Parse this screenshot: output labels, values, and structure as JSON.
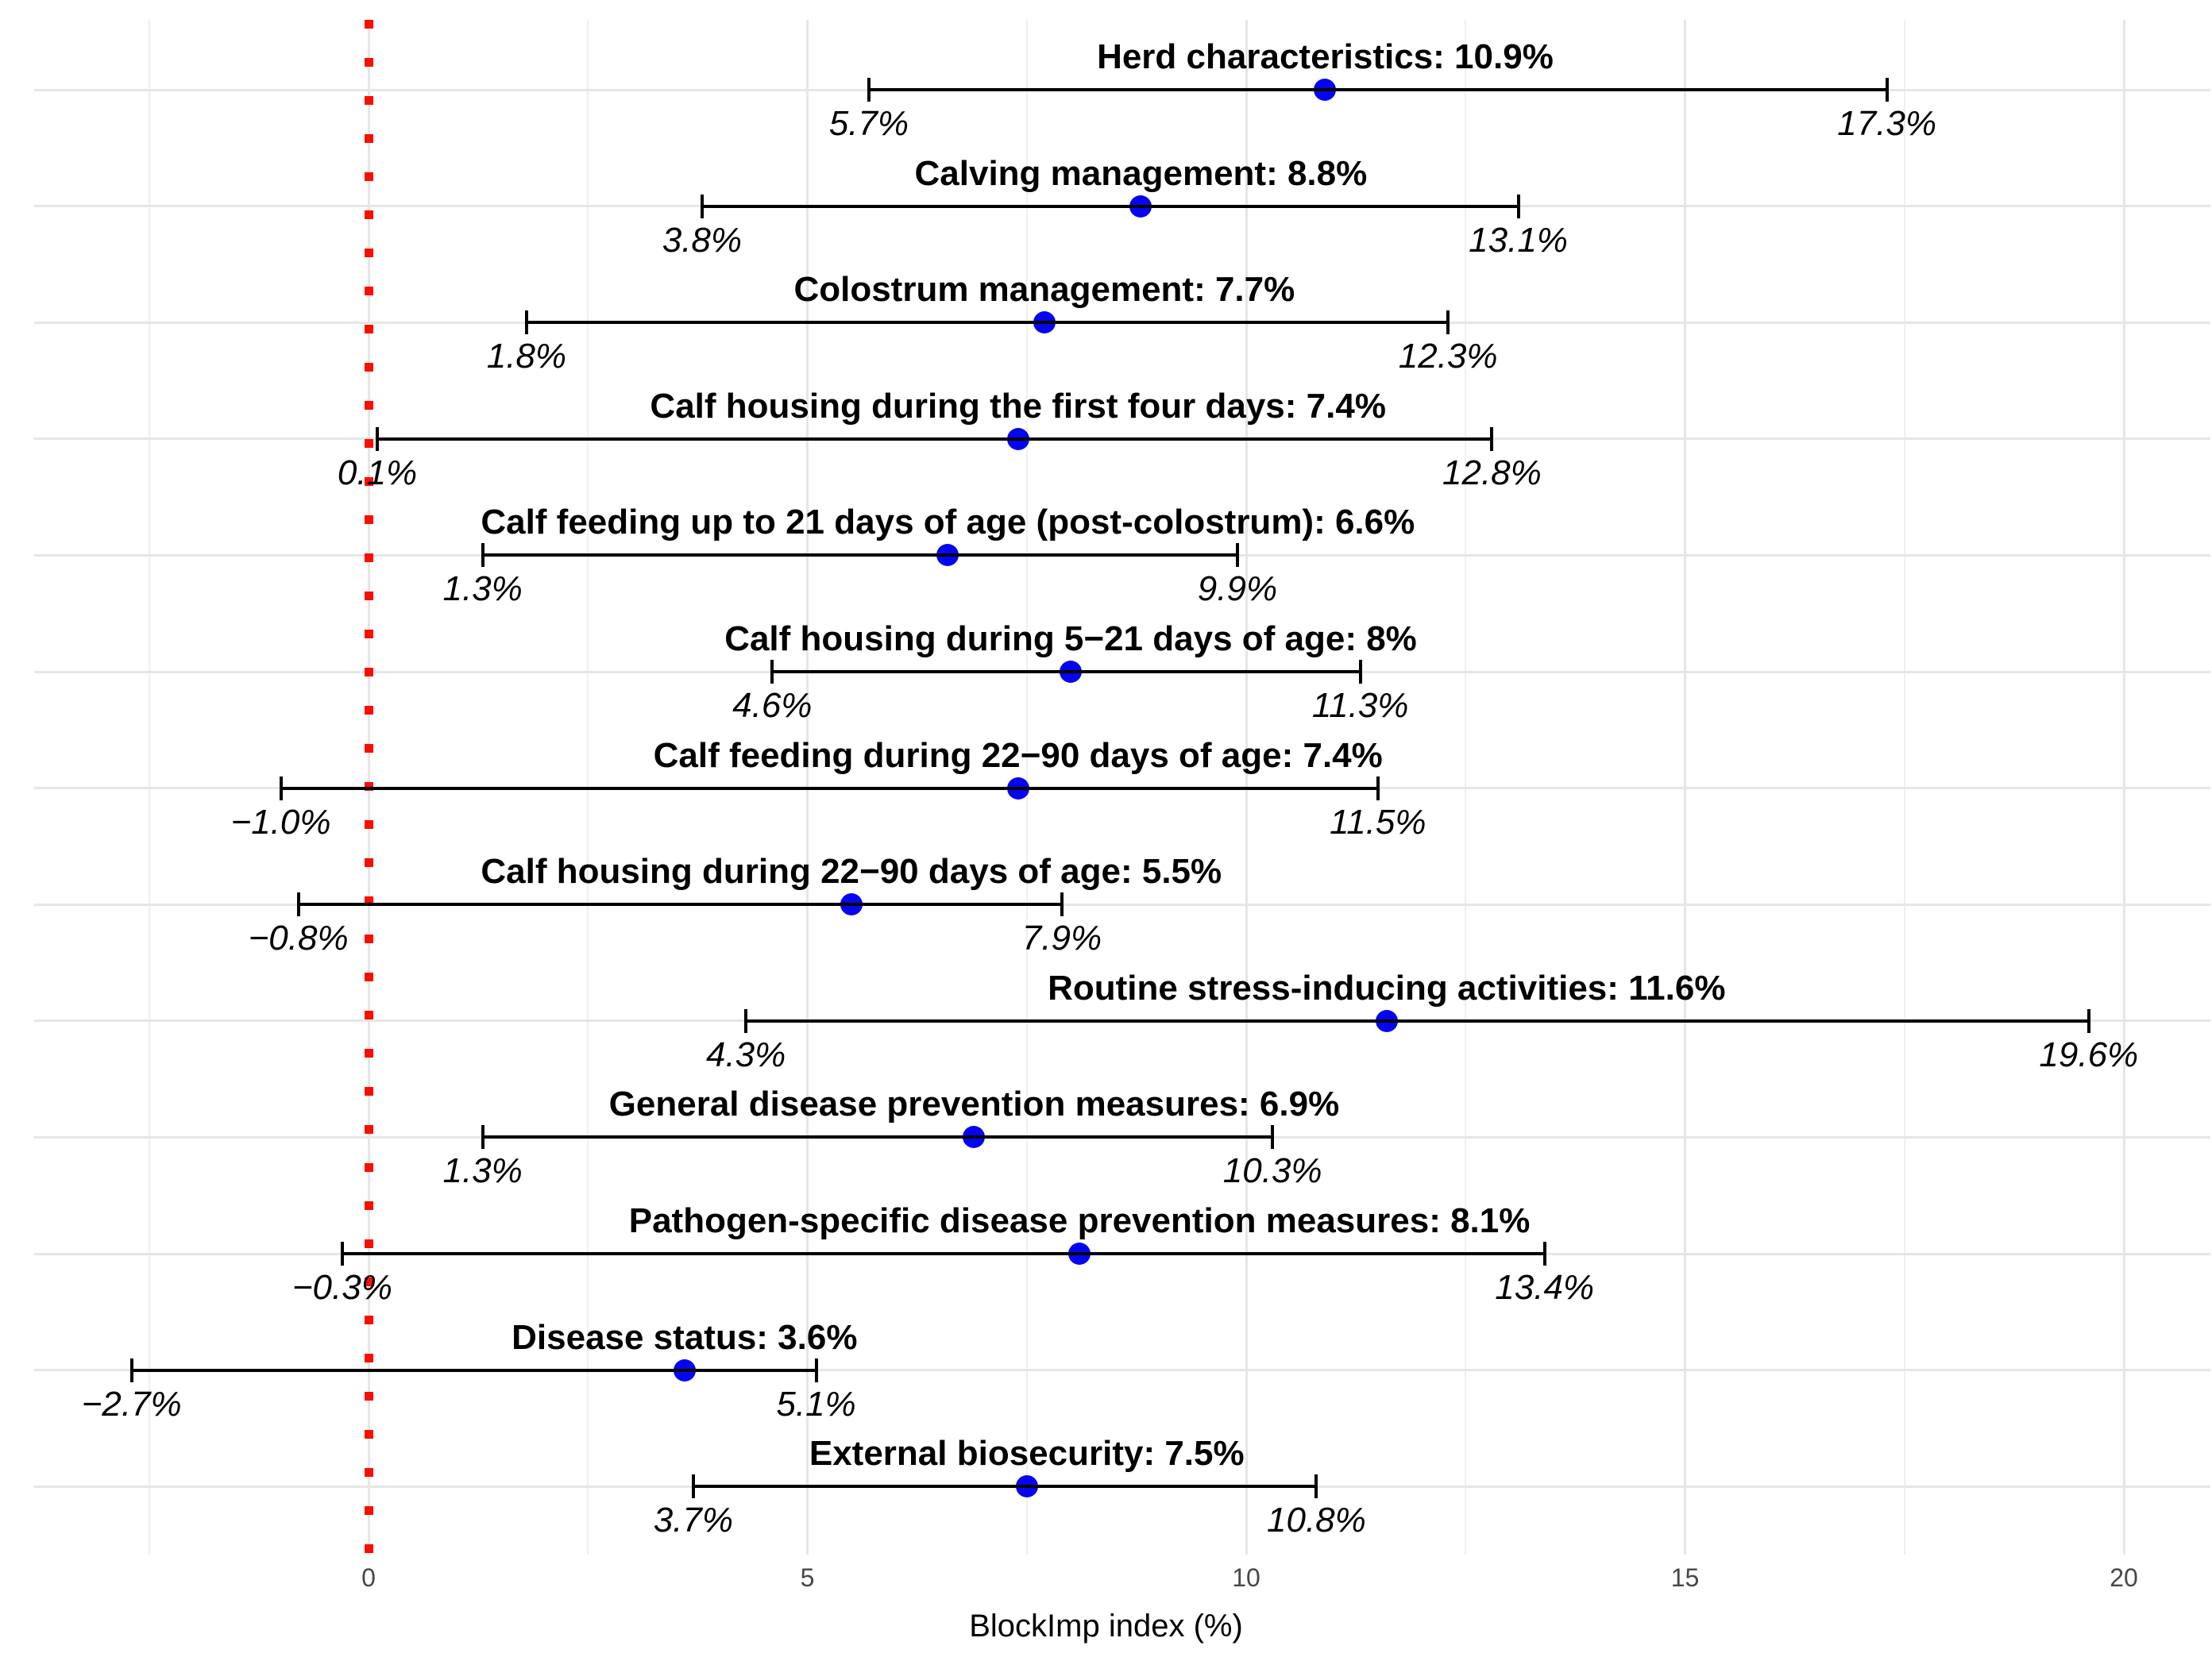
{
  "chart_data": {
    "type": "scatter",
    "subtype": "forest_plot_dot_interval",
    "title": "",
    "xlabel": "BlockImp index (%)",
    "ylabel": "",
    "xlim": [
      -3.8,
      21
    ],
    "x_major_ticks": [
      0,
      5,
      10,
      15,
      20
    ],
    "x_tick_labels": [
      "0",
      "5",
      "10",
      "15",
      "20"
    ],
    "x_minor_gridlines": [
      -2.5,
      2.5,
      7.5,
      12.5,
      17.5
    ],
    "grid": true,
    "legend": "none",
    "reference_line": {
      "x": 0,
      "style": "dotted",
      "color": "#FB0D00"
    },
    "colors": {
      "point": "#0505F0",
      "interval": "#000000",
      "reference": "#FB0D00",
      "grid_major": "#E6E6E6",
      "grid_minor": "#F0F0F0",
      "tick_text": "#474747"
    },
    "rows": [
      {
        "label": "Herd characteristics: 10.9%",
        "estimate": 10.9,
        "lower": 5.7,
        "upper": 17.3,
        "lower_label": "5.7%",
        "upper_label": "17.3%"
      },
      {
        "label": "Calving management: 8.8%",
        "estimate": 8.8,
        "lower": 3.8,
        "upper": 13.1,
        "lower_label": "3.8%",
        "upper_label": "13.1%"
      },
      {
        "label": "Colostrum management: 7.7%",
        "estimate": 7.7,
        "lower": 1.8,
        "upper": 12.3,
        "lower_label": "1.8%",
        "upper_label": "12.3%"
      },
      {
        "label": "Calf housing during the first four days: 7.4%",
        "estimate": 7.4,
        "lower": 0.1,
        "upper": 12.8,
        "lower_label": "0.1%",
        "upper_label": "12.8%"
      },
      {
        "label": "Calf feeding up to 21 days of age (post-colostrum): 6.6%",
        "estimate": 6.6,
        "lower": 1.3,
        "upper": 9.9,
        "lower_label": "1.3%",
        "upper_label": "9.9%"
      },
      {
        "label": "Calf housing during 5−21 days of age: 8%",
        "estimate": 8,
        "lower": 4.6,
        "upper": 11.3,
        "lower_label": "4.6%",
        "upper_label": "11.3%"
      },
      {
        "label": "Calf feeding during 22−90 days of age: 7.4%",
        "estimate": 7.4,
        "lower": -1.0,
        "upper": 11.5,
        "lower_label": "−1.0%",
        "upper_label": "11.5%"
      },
      {
        "label": "Calf housing during 22−90 days of age: 5.5%",
        "estimate": 5.5,
        "lower": -0.8,
        "upper": 7.9,
        "lower_label": "−0.8%",
        "upper_label": "7.9%"
      },
      {
        "label": "Routine stress-inducing activities: 11.6%",
        "estimate": 11.6,
        "lower": 4.3,
        "upper": 19.6,
        "lower_label": "4.3%",
        "upper_label": "19.6%"
      },
      {
        "label": "General disease prevention measures: 6.9%",
        "estimate": 6.9,
        "lower": 1.3,
        "upper": 10.3,
        "lower_label": "1.3%",
        "upper_label": "10.3%"
      },
      {
        "label": "Pathogen-specific disease prevention measures: 8.1%",
        "estimate": 8.1,
        "lower": -0.3,
        "upper": 13.4,
        "lower_label": "−0.3%",
        "upper_label": "13.4%"
      },
      {
        "label": "Disease status: 3.6%",
        "estimate": 3.6,
        "lower": -2.7,
        "upper": 5.1,
        "lower_label": "−2.7%",
        "upper_label": "5.1%"
      },
      {
        "label": "External biosecurity: 7.5%",
        "estimate": 7.5,
        "lower": 3.7,
        "upper": 10.8,
        "lower_label": "3.7%",
        "upper_label": "10.8%"
      }
    ]
  }
}
